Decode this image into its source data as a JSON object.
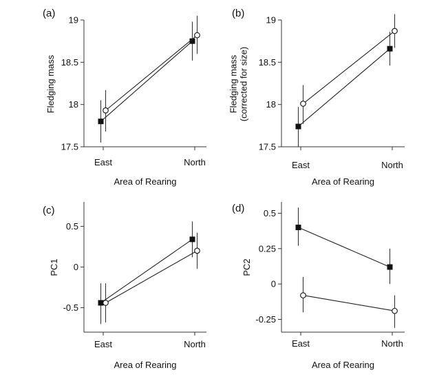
{
  "chart_data": [
    {
      "type": "line",
      "panel_label": "(a)",
      "categories": [
        "East",
        "North"
      ],
      "xlabel": "Area of Rearing",
      "ylabel": [
        "Fledging mass"
      ],
      "ylim": [
        17.5,
        19
      ],
      "yticks": [
        17.5,
        18,
        18.5,
        19
      ],
      "ytick_labels": [
        "17.5",
        "18",
        "18.5",
        "19"
      ],
      "series": [
        {
          "marker": "filled-square",
          "values": [
            17.8,
            18.75
          ],
          "errors": [
            [
              17.55,
              18.05
            ],
            [
              18.52,
              18.98
            ]
          ]
        },
        {
          "marker": "open-circle",
          "values": [
            17.93,
            18.82
          ],
          "errors": [
            [
              17.68,
              18.17
            ],
            [
              18.6,
              19.05
            ]
          ]
        }
      ]
    },
    {
      "type": "line",
      "panel_label": "(b)",
      "categories": [
        "East",
        "North"
      ],
      "xlabel": "Area of Rearing",
      "ylabel": [
        "Fledging mass",
        "(corrected for size)"
      ],
      "ylim": [
        17.5,
        19
      ],
      "yticks": [
        17.5,
        18,
        18.5,
        19
      ],
      "ytick_labels": [
        "17.5",
        "18",
        "18.5",
        "19"
      ],
      "series": [
        {
          "marker": "filled-square",
          "values": [
            17.74,
            18.66
          ],
          "errors": [
            [
              17.5,
              17.97
            ],
            [
              18.46,
              18.86
            ]
          ]
        },
        {
          "marker": "open-circle",
          "values": [
            18.01,
            18.87
          ],
          "errors": [
            [
              17.77,
              18.23
            ],
            [
              18.67,
              19.07
            ]
          ]
        }
      ]
    },
    {
      "type": "line",
      "panel_label": "(c)",
      "categories": [
        "East",
        "North"
      ],
      "xlabel": "Area of Rearing",
      "ylabel": [
        "PC1"
      ],
      "ylim": [
        -0.8,
        0.8
      ],
      "yticks": [
        -0.5,
        0,
        0.5
      ],
      "ytick_labels": [
        "-0.5",
        "0",
        "0.5"
      ],
      "series": [
        {
          "marker": "filled-square",
          "values": [
            -0.44,
            0.34
          ],
          "errors": [
            [
              -0.7,
              -0.2
            ],
            [
              0.12,
              0.56
            ]
          ]
        },
        {
          "marker": "open-circle",
          "values": [
            -0.44,
            0.2
          ],
          "errors": [
            [
              -0.68,
              -0.2
            ],
            [
              -0.02,
              0.42
            ]
          ]
        }
      ]
    },
    {
      "type": "line",
      "panel_label": "(d)",
      "categories": [
        "East",
        "North"
      ],
      "xlabel": "Area of Rearing",
      "ylabel": [
        "PC2"
      ],
      "ylim": [
        -0.34,
        0.58
      ],
      "yticks": [
        -0.25,
        0,
        0.25,
        0.5
      ],
      "ytick_labels": [
        "-0.25",
        "0",
        "0.25",
        "0.5"
      ],
      "series": [
        {
          "marker": "filled-square",
          "values": [
            0.4,
            0.12
          ],
          "errors": [
            [
              0.27,
              0.54
            ],
            [
              0.0,
              0.25
            ]
          ]
        },
        {
          "marker": "open-circle",
          "values": [
            -0.08,
            -0.19
          ],
          "errors": [
            [
              -0.2,
              0.05
            ],
            [
              -0.31,
              -0.08
            ]
          ]
        }
      ]
    }
  ]
}
